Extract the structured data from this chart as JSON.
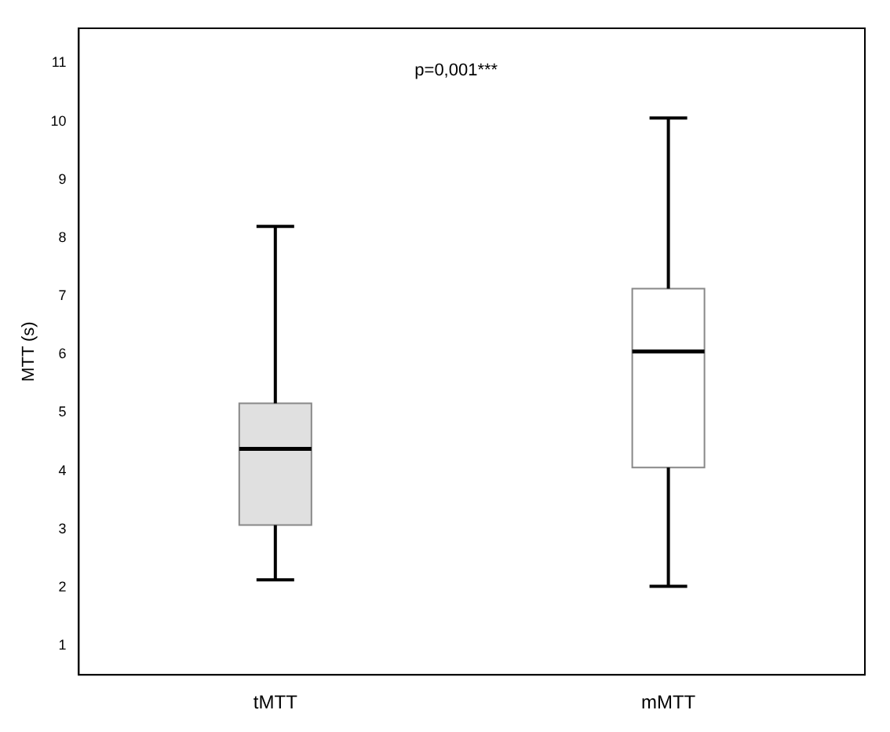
{
  "chart_data": {
    "type": "box",
    "ylabel": "MTT (s)",
    "categories": [
      "tMTT",
      "mMTT"
    ],
    "boxes": [
      {
        "low": 2.13,
        "q1": 3.07,
        "median": 4.38,
        "q3": 5.16,
        "high": 8.2
      },
      {
        "low": 2.02,
        "q1": 4.06,
        "median": 6.05,
        "q3": 7.13,
        "high": 10.06
      }
    ],
    "colors": [
      "#e0e0e0",
      "#ffffff"
    ],
    "ylim": [
      0.5,
      11.6
    ],
    "yticks": [
      1,
      2,
      3,
      4,
      5,
      6,
      7,
      8,
      9,
      10,
      11
    ],
    "grid": false,
    "annotations": [
      "p=0,001***"
    ]
  }
}
